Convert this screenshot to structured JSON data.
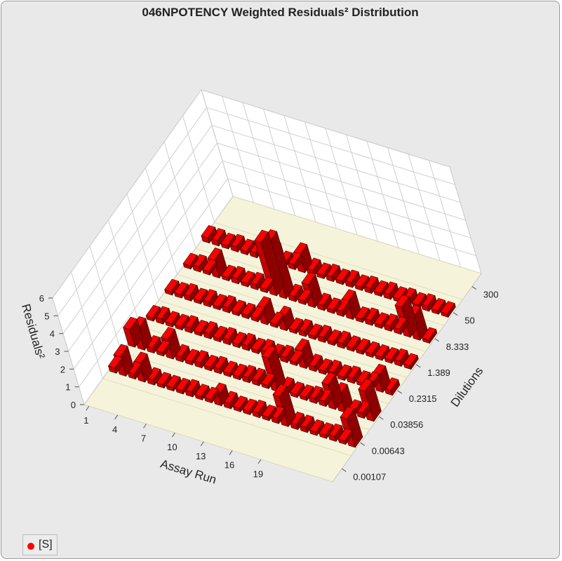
{
  "chart_data": {
    "type": "bar3d",
    "title": "046NPOTENCY Weighted Residuals² Distribution",
    "xlabel": "Assay Run",
    "ylabel": "Dilutions",
    "zlabel": "Residuals²",
    "x_ticks": [
      "1",
      "4",
      "7",
      "10",
      "13",
      "16",
      "19"
    ],
    "y_ticks": [
      "0.00107",
      "0.00643",
      "0.03856",
      "0.2315",
      "1.389",
      "8.333",
      "50",
      "300"
    ],
    "z_ticks": [
      "0",
      "1",
      "2",
      "3",
      "4",
      "5",
      "6"
    ],
    "zlim": [
      0,
      6
    ],
    "runs": [
      1,
      2,
      3,
      4,
      5,
      6,
      7,
      8,
      9,
      10,
      11,
      12,
      13,
      14,
      15,
      16,
      17,
      18,
      19,
      20,
      21,
      22,
      23,
      24,
      25,
      26
    ],
    "series": [
      {
        "name": "[S]",
        "color": "#ff0000",
        "rows": [
          {
            "dilution": "0.00643",
            "values": [
              0.3,
              1.1,
              0.3,
              1.0,
              0.3,
              0.2,
              0.2,
              0.2,
              0.3,
              0.2,
              0.2,
              0.6,
              0.3,
              0.2,
              0.2,
              0.3,
              0.2,
              0.3,
              1.7,
              0.3,
              0.3,
              0.2,
              0.2,
              0.3,
              0.2,
              1.6
            ]
          },
          {
            "dilution": "0.03856",
            "values": [
              1.0,
              1.2,
              0.3,
              0.2,
              1.1,
              0.3,
              0.2,
              0.3,
              0.2,
              0.3,
              0.2,
              0.2,
              0.3,
              0.3,
              0.2,
              1.9,
              0.3,
              0.2,
              0.2,
              0.3,
              0.3,
              1.4,
              1.0,
              0.2,
              0.3,
              1.7
            ]
          },
          {
            "dilution": "0.2315",
            "values": [
              0.2,
              0.3,
              0.2,
              0.2,
              0.3,
              0.2,
              0.3,
              0.2,
              0.3,
              0.2,
              0.3,
              0.2,
              0.3,
              0.2,
              0.3,
              0.2,
              1.0,
              0.3,
              0.2,
              0.3,
              0.2,
              0.3,
              0.2,
              0.3,
              0.9,
              0.3
            ]
          },
          {
            "dilution": "1.389",
            "values": [
              0.2,
              0.2,
              0.3,
              0.2,
              0.3,
              0.2,
              0.3,
              0.2,
              0.2,
              0.2,
              0.9,
              0.2,
              0.7,
              0.2,
              0.3,
              0.2,
              0.3,
              0.2,
              0.3,
              0.2,
              0.2,
              0.2,
              0.2,
              0.2,
              0.3,
              0.2
            ]
          },
          {
            "dilution": "8.333",
            "values": [
              0.2,
              0.3,
              0.2,
              1.0,
              0.2,
              0.3,
              0.2,
              0.3,
              0.2,
              3.0,
              3.2,
              0.3,
              0.2,
              1.3,
              0.3,
              0.2,
              0.3,
              1.0,
              0.2,
              0.3,
              0.2,
              0.3,
              0.3,
              1.7,
              1.3,
              0.2
            ]
          },
          {
            "dilution": "50",
            "values": [
              0.3,
              0.3,
              0.2,
              0.3,
              0.2,
              0.3,
              0.2,
              0.6,
              0.2,
              0.3,
              1.0,
              0.3,
              0.2,
              0.3,
              0.2,
              0.3,
              0.2,
              0.3,
              0.2,
              0.3,
              0.2,
              0.3,
              0.2,
              0.3,
              0.2,
              0.2
            ]
          }
        ]
      }
    ],
    "legend": {
      "position": "bottom-left",
      "label": "[S]",
      "marker_color": "#ff0000"
    },
    "grid": true,
    "floor_color": "#f5f3da"
  }
}
